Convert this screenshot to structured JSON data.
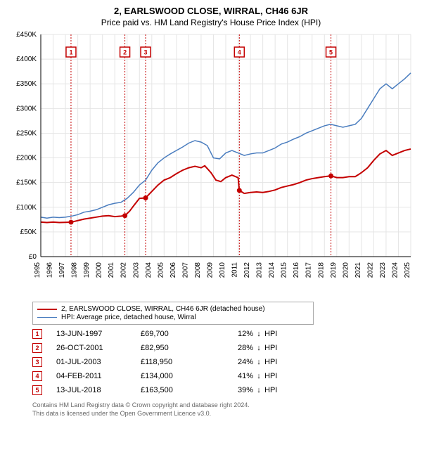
{
  "title": "2, EARLSWOOD CLOSE, WIRRAL, CH46 6JR",
  "subtitle": "Price paid vs. HM Land Registry's House Price Index (HPI)",
  "chart": {
    "type": "line",
    "background_color": "#ffffff",
    "grid_color": "#e5e5e5",
    "axis_color": "#000000",
    "y": {
      "min": 0,
      "max": 450000,
      "step": 50000,
      "tick_labels": [
        "£0",
        "£50K",
        "£100K",
        "£150K",
        "£200K",
        "£250K",
        "£300K",
        "£350K",
        "£400K",
        "£450K"
      ]
    },
    "x": {
      "min": 1995,
      "max": 2025,
      "step": 1,
      "tick_labels": [
        "1995",
        "1996",
        "1997",
        "1998",
        "1999",
        "2000",
        "2001",
        "2002",
        "2003",
        "2004",
        "2005",
        "2006",
        "2007",
        "2008",
        "2009",
        "2010",
        "2011",
        "2012",
        "2013",
        "2014",
        "2015",
        "2016",
        "2017",
        "2018",
        "2019",
        "2020",
        "2021",
        "2022",
        "2023",
        "2024",
        "2025"
      ]
    },
    "series": [
      {
        "id": "property",
        "color": "#c40000",
        "line_width": 2,
        "label": "2, EARLSWOOD CLOSE, WIRRAL, CH46 6JR (detached house)",
        "points": [
          [
            1995.0,
            70000
          ],
          [
            1995.5,
            69000
          ],
          [
            1996.0,
            70000
          ],
          [
            1996.5,
            69000
          ],
          [
            1997.0,
            69500
          ],
          [
            1997.45,
            69700
          ],
          [
            1998.0,
            73000
          ],
          [
            1998.5,
            76000
          ],
          [
            1999.0,
            78000
          ],
          [
            1999.5,
            80000
          ],
          [
            2000.0,
            82000
          ],
          [
            2000.5,
            83000
          ],
          [
            2001.0,
            81000
          ],
          [
            2001.5,
            82000
          ],
          [
            2001.82,
            82950
          ],
          [
            2002.2,
            92000
          ],
          [
            2002.5,
            102000
          ],
          [
            2003.0,
            118000
          ],
          [
            2003.5,
            118950
          ],
          [
            2004.0,
            132000
          ],
          [
            2004.5,
            145000
          ],
          [
            2005.0,
            155000
          ],
          [
            2005.5,
            160000
          ],
          [
            2006.0,
            168000
          ],
          [
            2006.5,
            175000
          ],
          [
            2007.0,
            180000
          ],
          [
            2007.5,
            183000
          ],
          [
            2008.0,
            180000
          ],
          [
            2008.3,
            184000
          ],
          [
            2008.8,
            170000
          ],
          [
            2009.2,
            155000
          ],
          [
            2009.6,
            152000
          ],
          [
            2010.0,
            160000
          ],
          [
            2010.5,
            165000
          ],
          [
            2011.0,
            160000
          ],
          [
            2011.1,
            134000
          ],
          [
            2011.5,
            128000
          ],
          [
            2012.0,
            130000
          ],
          [
            2012.5,
            131000
          ],
          [
            2013.0,
            130000
          ],
          [
            2013.5,
            132000
          ],
          [
            2014.0,
            135000
          ],
          [
            2014.5,
            140000
          ],
          [
            2015.0,
            143000
          ],
          [
            2015.5,
            146000
          ],
          [
            2016.0,
            150000
          ],
          [
            2016.5,
            155000
          ],
          [
            2017.0,
            158000
          ],
          [
            2017.5,
            160000
          ],
          [
            2018.0,
            162000
          ],
          [
            2018.53,
            163500
          ],
          [
            2019.0,
            160000
          ],
          [
            2019.5,
            160000
          ],
          [
            2020.0,
            162000
          ],
          [
            2020.5,
            162000
          ],
          [
            2021.0,
            170000
          ],
          [
            2021.5,
            180000
          ],
          [
            2022.0,
            195000
          ],
          [
            2022.5,
            208000
          ],
          [
            2023.0,
            215000
          ],
          [
            2023.5,
            205000
          ],
          [
            2024.0,
            210000
          ],
          [
            2024.5,
            215000
          ],
          [
            2025.0,
            218000
          ]
        ]
      },
      {
        "id": "hpi",
        "color": "#4a7dbf",
        "line_width": 1.5,
        "label": "HPI: Average price, detached house, Wirral",
        "points": [
          [
            1995.0,
            80000
          ],
          [
            1995.5,
            78000
          ],
          [
            1996.0,
            80000
          ],
          [
            1996.5,
            79000
          ],
          [
            1997.0,
            80000
          ],
          [
            1997.5,
            82000
          ],
          [
            1998.0,
            85000
          ],
          [
            1998.5,
            90000
          ],
          [
            1999.0,
            92000
          ],
          [
            1999.5,
            95000
          ],
          [
            2000.0,
            100000
          ],
          [
            2000.5,
            105000
          ],
          [
            2001.0,
            108000
          ],
          [
            2001.5,
            110000
          ],
          [
            2002.0,
            118000
          ],
          [
            2002.5,
            130000
          ],
          [
            2003.0,
            145000
          ],
          [
            2003.5,
            155000
          ],
          [
            2004.0,
            175000
          ],
          [
            2004.5,
            190000
          ],
          [
            2005.0,
            200000
          ],
          [
            2005.5,
            208000
          ],
          [
            2006.0,
            215000
          ],
          [
            2006.5,
            222000
          ],
          [
            2007.0,
            230000
          ],
          [
            2007.5,
            235000
          ],
          [
            2008.0,
            232000
          ],
          [
            2008.5,
            225000
          ],
          [
            2009.0,
            200000
          ],
          [
            2009.5,
            198000
          ],
          [
            2010.0,
            210000
          ],
          [
            2010.5,
            215000
          ],
          [
            2011.0,
            210000
          ],
          [
            2011.5,
            205000
          ],
          [
            2012.0,
            208000
          ],
          [
            2012.5,
            210000
          ],
          [
            2013.0,
            210000
          ],
          [
            2013.5,
            215000
          ],
          [
            2014.0,
            220000
          ],
          [
            2014.5,
            228000
          ],
          [
            2015.0,
            232000
          ],
          [
            2015.5,
            238000
          ],
          [
            2016.0,
            243000
          ],
          [
            2016.5,
            250000
          ],
          [
            2017.0,
            255000
          ],
          [
            2017.5,
            260000
          ],
          [
            2018.0,
            265000
          ],
          [
            2018.5,
            268000
          ],
          [
            2019.0,
            265000
          ],
          [
            2019.5,
            262000
          ],
          [
            2020.0,
            265000
          ],
          [
            2020.5,
            268000
          ],
          [
            2021.0,
            280000
          ],
          [
            2021.5,
            300000
          ],
          [
            2022.0,
            320000
          ],
          [
            2022.5,
            340000
          ],
          [
            2023.0,
            350000
          ],
          [
            2023.5,
            340000
          ],
          [
            2024.0,
            350000
          ],
          [
            2024.5,
            360000
          ],
          [
            2025.0,
            372000
          ]
        ]
      }
    ],
    "markers": [
      {
        "n": 1,
        "year": 1997.45,
        "value": 69700
      },
      {
        "n": 2,
        "year": 2001.82,
        "value": 82950
      },
      {
        "n": 3,
        "year": 2003.5,
        "value": 118950
      },
      {
        "n": 4,
        "year": 2011.1,
        "value": 134000
      },
      {
        "n": 5,
        "year": 2018.53,
        "value": 163500
      }
    ]
  },
  "legend": {
    "rows": [
      {
        "color": "#c40000",
        "width": 2.5,
        "label_key": "chart.series.0.label"
      },
      {
        "color": "#4a7dbf",
        "width": 1.5,
        "label_key": "chart.series.1.label"
      }
    ]
  },
  "table": {
    "hpi_label": "HPI",
    "rows": [
      {
        "n": "1",
        "date": "13-JUN-1997",
        "price": "£69,700",
        "pct": "12%",
        "arrow": "↓"
      },
      {
        "n": "2",
        "date": "26-OCT-2001",
        "price": "£82,950",
        "pct": "28%",
        "arrow": "↓"
      },
      {
        "n": "3",
        "date": "01-JUL-2003",
        "price": "£118,950",
        "pct": "24%",
        "arrow": "↓"
      },
      {
        "n": "4",
        "date": "04-FEB-2011",
        "price": "£134,000",
        "pct": "41%",
        "arrow": "↓"
      },
      {
        "n": "5",
        "date": "13-JUL-2018",
        "price": "£163,500",
        "pct": "39%",
        "arrow": "↓"
      }
    ]
  },
  "footer": {
    "l1": "Contains HM Land Registry data © Crown copyright and database right 2024.",
    "l2": "This data is licensed under the Open Government Licence v3.0."
  }
}
